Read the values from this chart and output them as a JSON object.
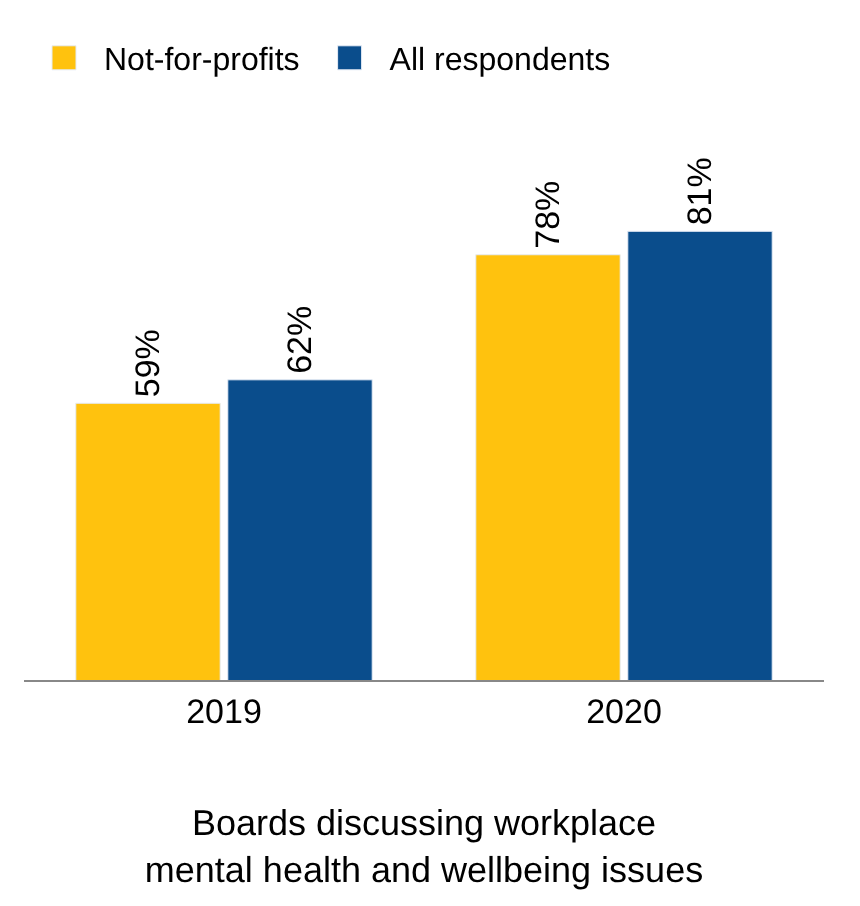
{
  "chart_data": {
    "type": "bar",
    "xlabel": "Boards discussing workplace\nmental health and wellbeing issues",
    "categories": [
      "2019",
      "2020"
    ],
    "series": [
      {
        "name": "Not-for-profits",
        "color": "#ffc20e",
        "values": [
          59,
          78
        ],
        "value_labels": [
          "59%",
          "78%"
        ]
      },
      {
        "name": "All respondents",
        "color": "#0a4d8c",
        "values": [
          62,
          81
        ],
        "value_labels": [
          "62%",
          "81%"
        ]
      }
    ],
    "tick_labels": "x",
    "legend": "top left"
  }
}
